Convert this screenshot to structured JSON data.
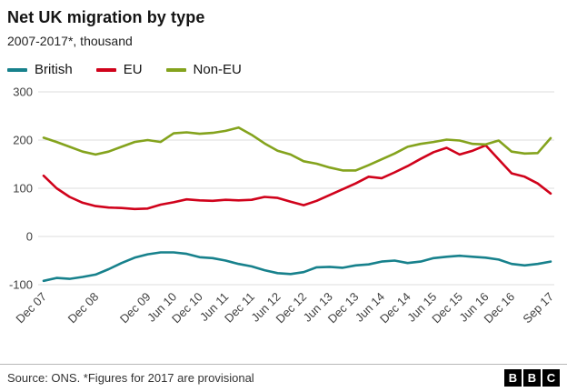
{
  "header": {
    "title": "Net UK migration by type",
    "subtitle": "2007-2017*, thousand"
  },
  "chart_data": {
    "type": "line",
    "title": "Net UK migration by type",
    "subtitle": "2007-2017*, thousand",
    "unit": "thousand",
    "ylim": [
      -100,
      300
    ],
    "y_ticks": [
      300,
      200,
      100,
      0,
      -100
    ],
    "grid": "horizontal",
    "legend_position": "top",
    "x_note": "quarterly points from Dec 2007 to Sep 2017",
    "x_tick_labels": [
      {
        "label": "Dec 07",
        "index": 0
      },
      {
        "label": "Dec 08",
        "index": 4
      },
      {
        "label": "Dec 09",
        "index": 8
      },
      {
        "label": "Jun 10",
        "index": 10
      },
      {
        "label": "Dec 10",
        "index": 12
      },
      {
        "label": "Jun 11",
        "index": 14
      },
      {
        "label": "Dec 11",
        "index": 16
      },
      {
        "label": "Jun 12",
        "index": 18
      },
      {
        "label": "Dec 12",
        "index": 20
      },
      {
        "label": "Jun 13",
        "index": 22
      },
      {
        "label": "Dec 13",
        "index": 24
      },
      {
        "label": "Jun 14",
        "index": 26
      },
      {
        "label": "Dec 14",
        "index": 28
      },
      {
        "label": "Jun 15",
        "index": 30
      },
      {
        "label": "Dec 15",
        "index": 32
      },
      {
        "label": "Jun 16",
        "index": 34
      },
      {
        "label": "Dec 16",
        "index": 36
      },
      {
        "label": "Sep 17",
        "index": 39
      }
    ],
    "series": [
      {
        "name": "British",
        "color": "#17818c",
        "values": [
          -92,
          -86,
          -88,
          -84,
          -79,
          -68,
          -55,
          -44,
          -37,
          -33,
          -33,
          -36,
          -43,
          -45,
          -50,
          -57,
          -62,
          -70,
          -76,
          -78,
          -74,
          -64,
          -63,
          -65,
          -60,
          -58,
          -52,
          -50,
          -55,
          -52,
          -45,
          -42,
          -40,
          -42,
          -44,
          -48,
          -57,
          -60,
          -57,
          -52
        ]
      },
      {
        "name": "EU",
        "color": "#d0021b",
        "values": [
          126,
          100,
          82,
          70,
          63,
          60,
          59,
          57,
          58,
          66,
          71,
          77,
          75,
          74,
          76,
          75,
          76,
          82,
          80,
          72,
          65,
          74,
          86,
          98,
          110,
          124,
          121,
          133,
          146,
          161,
          175,
          184,
          170,
          178,
          189,
          160,
          131,
          124,
          110,
          89
        ]
      },
      {
        "name": "Non-EU",
        "color": "#84a31d",
        "values": [
          205,
          196,
          186,
          176,
          170,
          176,
          186,
          196,
          200,
          196,
          214,
          216,
          213,
          215,
          219,
          226,
          211,
          193,
          178,
          170,
          156,
          151,
          143,
          137,
          137,
          148,
          160,
          172,
          186,
          192,
          196,
          201,
          199,
          192,
          191,
          199,
          176,
          172,
          173,
          204
        ]
      }
    ]
  },
  "footer": {
    "source": "Source: ONS. *Figures for 2017 are provisional",
    "logo_letters": [
      "B",
      "B",
      "C"
    ]
  }
}
